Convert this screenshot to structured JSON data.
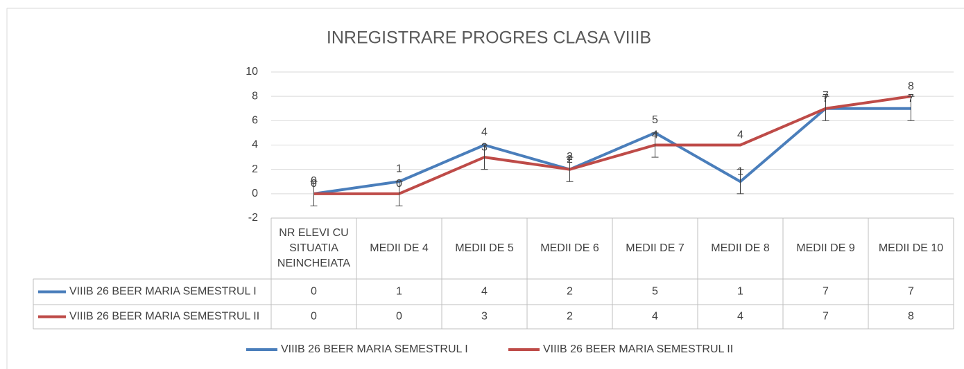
{
  "chart_data": {
    "type": "line",
    "title": "INREGISTRARE PROGRES CLASA VIIIB",
    "categories": [
      "NR ELEVI CU SITUATIA NEINCHEIATA",
      "MEDII DE 4",
      "MEDII DE 5",
      "MEDII DE 6",
      "MEDII DE 7",
      "MEDII DE 8",
      "MEDII DE 9",
      "MEDII DE 10"
    ],
    "series": [
      {
        "name": "VIIIB 26 BEER MARIA SEMESTRUL I",
        "color": "#4a7ebb",
        "values": [
          0,
          1,
          4,
          2,
          5,
          1,
          7,
          7
        ],
        "errors": [
          null,
          null,
          null,
          null,
          null,
          1,
          null,
          1
        ]
      },
      {
        "name": "VIIIB 26 BEER MARIA SEMESTRUL II",
        "color": "#be4b48",
        "values": [
          0,
          0,
          3,
          2,
          4,
          4,
          7,
          8
        ],
        "errors": [
          1,
          1,
          1,
          1,
          1,
          null,
          1,
          null
        ]
      }
    ],
    "ylim": [
      -2,
      10
    ],
    "yticks": [
      -2,
      0,
      2,
      4,
      6,
      8,
      10
    ],
    "grid": true,
    "data_table": true,
    "legend": "bottom"
  }
}
